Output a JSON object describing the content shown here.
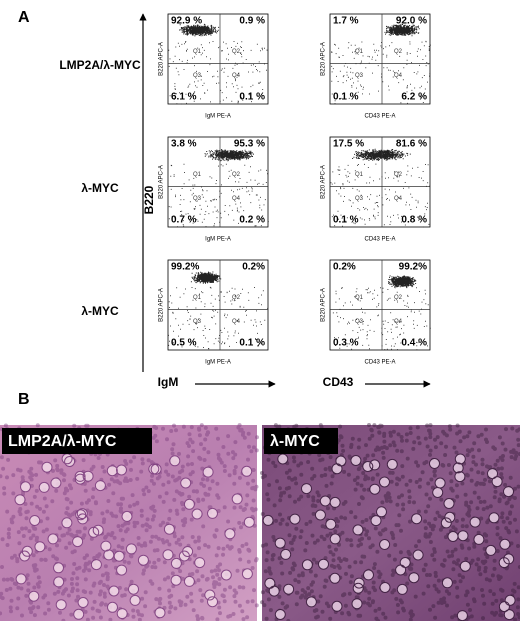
{
  "panel_a": {
    "label": "A",
    "y_axis_label": "B220",
    "x_axis_labels": [
      "IgM",
      "CD43"
    ],
    "quadrant_names": [
      "Q1",
      "Q2",
      "Q3",
      "Q4"
    ],
    "rows": [
      {
        "label": "LMP2A/λ-MYC",
        "plots": [
          {
            "x_label": "IgM PE-A",
            "y_label": "B220 APC-A",
            "quadrants": [
              "92.9 %",
              "0.9 %",
              "6.1 %",
              "0.1 %"
            ]
          },
          {
            "x_label": "CD43 PE-A",
            "y_label": "B220 APC-A",
            "quadrants": [
              "1.7 %",
              "92.0 %",
              "0.1 %",
              "6.2 %"
            ]
          }
        ]
      },
      {
        "label": "λ-MYC",
        "plots": [
          {
            "x_label": "IgM PE-A",
            "y_label": "B220 APC-A",
            "quadrants": [
              "3.8 %",
              "95.3 %",
              "0.7 %",
              "0.2 %"
            ]
          },
          {
            "x_label": "CD43 PE-A",
            "y_label": "B220 APC-A",
            "quadrants": [
              "17.5 %",
              "81.6 %",
              "0.1 %",
              "0.8 %"
            ]
          }
        ]
      },
      {
        "label": "λ-MYC",
        "plots": [
          {
            "x_label": "IgM PE-A",
            "y_label": "B220 APC-A",
            "quadrants": [
              "99.2%",
              "0.2%",
              "0.5 %",
              "0.1 %"
            ]
          },
          {
            "x_label": "CD43 PE-A",
            "y_label": "B220 APC-A",
            "quadrants": [
              "0.2%",
              "99.2%",
              "0.3 %",
              "0.4 %"
            ]
          }
        ]
      }
    ]
  },
  "panel_b": {
    "label": "B",
    "images": [
      {
        "caption": "LMP2A/λ-MYC"
      },
      {
        "caption": "λ-MYC"
      }
    ]
  }
}
